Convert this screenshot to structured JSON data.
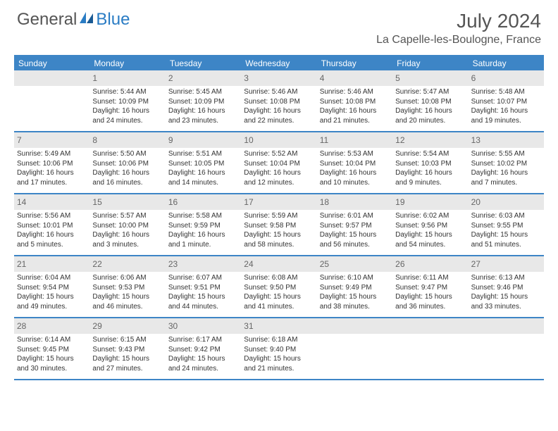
{
  "logo": {
    "text1": "General",
    "text2": "Blue"
  },
  "title": "July 2024",
  "location": "La Capelle-les-Boulogne, France",
  "weekdays": [
    "Sunday",
    "Monday",
    "Tuesday",
    "Wednesday",
    "Thursday",
    "Friday",
    "Saturday"
  ],
  "colors": {
    "header_bar": "#3d85c6",
    "daynum_bg": "#e8e8e8",
    "border": "#3d85c6",
    "text": "#333333",
    "muted": "#666666"
  },
  "start_weekday_index": 1,
  "days": [
    {
      "n": 1,
      "sunrise": "5:44 AM",
      "sunset": "10:09 PM",
      "daylight": "16 hours and 24 minutes."
    },
    {
      "n": 2,
      "sunrise": "5:45 AM",
      "sunset": "10:09 PM",
      "daylight": "16 hours and 23 minutes."
    },
    {
      "n": 3,
      "sunrise": "5:46 AM",
      "sunset": "10:08 PM",
      "daylight": "16 hours and 22 minutes."
    },
    {
      "n": 4,
      "sunrise": "5:46 AM",
      "sunset": "10:08 PM",
      "daylight": "16 hours and 21 minutes."
    },
    {
      "n": 5,
      "sunrise": "5:47 AM",
      "sunset": "10:08 PM",
      "daylight": "16 hours and 20 minutes."
    },
    {
      "n": 6,
      "sunrise": "5:48 AM",
      "sunset": "10:07 PM",
      "daylight": "16 hours and 19 minutes."
    },
    {
      "n": 7,
      "sunrise": "5:49 AM",
      "sunset": "10:06 PM",
      "daylight": "16 hours and 17 minutes."
    },
    {
      "n": 8,
      "sunrise": "5:50 AM",
      "sunset": "10:06 PM",
      "daylight": "16 hours and 16 minutes."
    },
    {
      "n": 9,
      "sunrise": "5:51 AM",
      "sunset": "10:05 PM",
      "daylight": "16 hours and 14 minutes."
    },
    {
      "n": 10,
      "sunrise": "5:52 AM",
      "sunset": "10:04 PM",
      "daylight": "16 hours and 12 minutes."
    },
    {
      "n": 11,
      "sunrise": "5:53 AM",
      "sunset": "10:04 PM",
      "daylight": "16 hours and 10 minutes."
    },
    {
      "n": 12,
      "sunrise": "5:54 AM",
      "sunset": "10:03 PM",
      "daylight": "16 hours and 9 minutes."
    },
    {
      "n": 13,
      "sunrise": "5:55 AM",
      "sunset": "10:02 PM",
      "daylight": "16 hours and 7 minutes."
    },
    {
      "n": 14,
      "sunrise": "5:56 AM",
      "sunset": "10:01 PM",
      "daylight": "16 hours and 5 minutes."
    },
    {
      "n": 15,
      "sunrise": "5:57 AM",
      "sunset": "10:00 PM",
      "daylight": "16 hours and 3 minutes."
    },
    {
      "n": 16,
      "sunrise": "5:58 AM",
      "sunset": "9:59 PM",
      "daylight": "16 hours and 1 minute."
    },
    {
      "n": 17,
      "sunrise": "5:59 AM",
      "sunset": "9:58 PM",
      "daylight": "15 hours and 58 minutes."
    },
    {
      "n": 18,
      "sunrise": "6:01 AM",
      "sunset": "9:57 PM",
      "daylight": "15 hours and 56 minutes."
    },
    {
      "n": 19,
      "sunrise": "6:02 AM",
      "sunset": "9:56 PM",
      "daylight": "15 hours and 54 minutes."
    },
    {
      "n": 20,
      "sunrise": "6:03 AM",
      "sunset": "9:55 PM",
      "daylight": "15 hours and 51 minutes."
    },
    {
      "n": 21,
      "sunrise": "6:04 AM",
      "sunset": "9:54 PM",
      "daylight": "15 hours and 49 minutes."
    },
    {
      "n": 22,
      "sunrise": "6:06 AM",
      "sunset": "9:53 PM",
      "daylight": "15 hours and 46 minutes."
    },
    {
      "n": 23,
      "sunrise": "6:07 AM",
      "sunset": "9:51 PM",
      "daylight": "15 hours and 44 minutes."
    },
    {
      "n": 24,
      "sunrise": "6:08 AM",
      "sunset": "9:50 PM",
      "daylight": "15 hours and 41 minutes."
    },
    {
      "n": 25,
      "sunrise": "6:10 AM",
      "sunset": "9:49 PM",
      "daylight": "15 hours and 38 minutes."
    },
    {
      "n": 26,
      "sunrise": "6:11 AM",
      "sunset": "9:47 PM",
      "daylight": "15 hours and 36 minutes."
    },
    {
      "n": 27,
      "sunrise": "6:13 AM",
      "sunset": "9:46 PM",
      "daylight": "15 hours and 33 minutes."
    },
    {
      "n": 28,
      "sunrise": "6:14 AM",
      "sunset": "9:45 PM",
      "daylight": "15 hours and 30 minutes."
    },
    {
      "n": 29,
      "sunrise": "6:15 AM",
      "sunset": "9:43 PM",
      "daylight": "15 hours and 27 minutes."
    },
    {
      "n": 30,
      "sunrise": "6:17 AM",
      "sunset": "9:42 PM",
      "daylight": "15 hours and 24 minutes."
    },
    {
      "n": 31,
      "sunrise": "6:18 AM",
      "sunset": "9:40 PM",
      "daylight": "15 hours and 21 minutes."
    }
  ],
  "labels": {
    "sunrise": "Sunrise:",
    "sunset": "Sunset:",
    "daylight": "Daylight:"
  }
}
